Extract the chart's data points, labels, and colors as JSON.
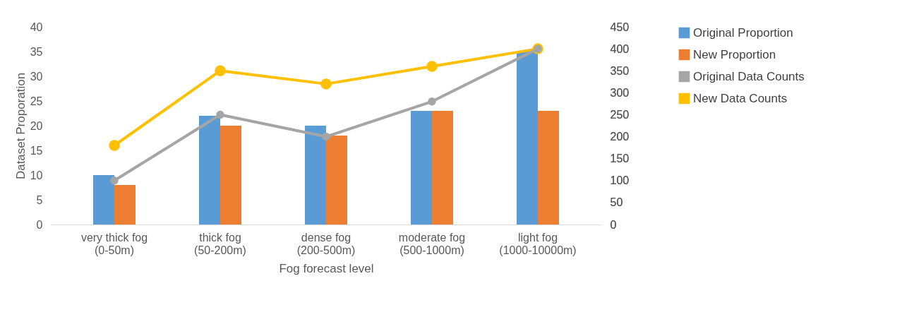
{
  "chart_data": {
    "type": "bar",
    "xlabel": "Fog forecast level",
    "ylabel": "Dataset Proporation",
    "categories": [
      "very thick fog (0-50m)",
      "thick fog (50-200m)",
      "dense fog (200-500m)",
      "moderate fog (500-1000m)",
      "light fog (1000-10000m)"
    ],
    "series": [
      {
        "name": "Original Proportion",
        "color": "#5b9bd5",
        "values": [
          10,
          22,
          20,
          23,
          35
        ]
      },
      {
        "name": "New Proportion",
        "color": "#ed7d31",
        "values": [
          8,
          20,
          18,
          23,
          23
        ]
      },
      {
        "name": "Original Data Counts",
        "color": "#a5a5a5",
        "type": "line",
        "axis": "y2",
        "values": [
          100,
          250,
          200,
          280,
          400
        ]
      },
      {
        "name": "New Data Counts",
        "color": "#ffc000",
        "type": "line",
        "axis": "y2",
        "values": [
          180,
          350,
          320,
          360,
          400
        ]
      }
    ],
    "ylim": [
      0,
      40
    ],
    "yticks": [
      0,
      5,
      10,
      15,
      20,
      25,
      30,
      35,
      40
    ],
    "y2lim": [
      0,
      450
    ],
    "y2ticks": [
      0,
      50,
      100,
      150,
      200,
      250,
      300,
      350,
      400,
      450
    ],
    "legend": "right",
    "marker": "circle"
  }
}
